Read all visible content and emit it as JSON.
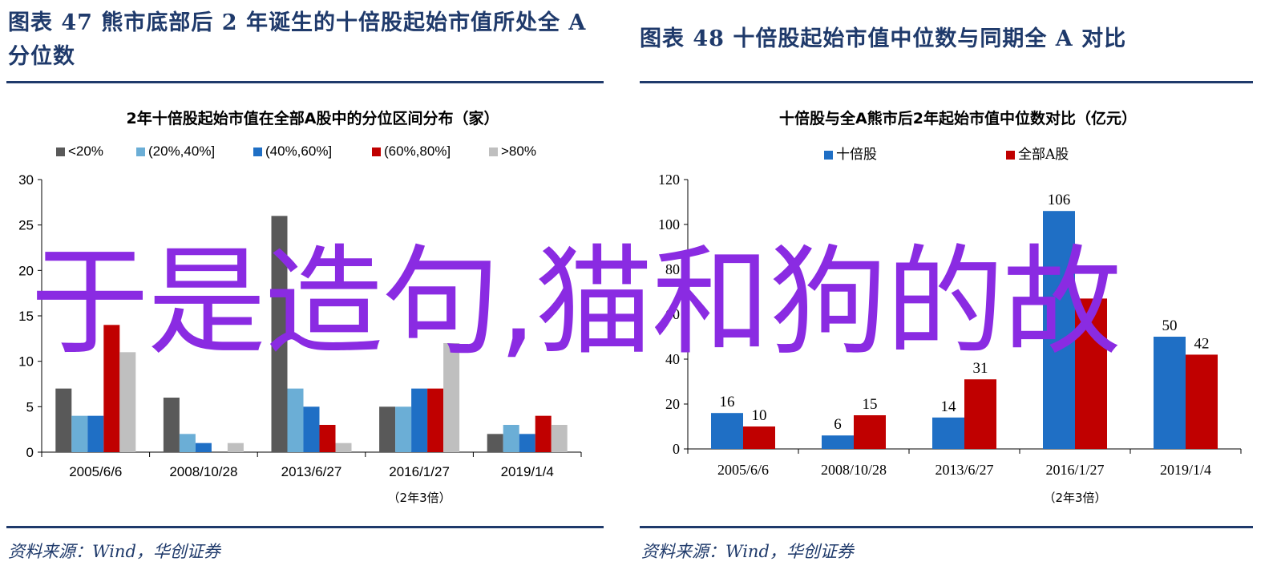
{
  "left": {
    "figure_title": "图表  47    熊市底部后 2 年诞生的十倍股起始市值所处全 A 分位数",
    "source": "资料来源：Wind，华创证券"
  },
  "right": {
    "figure_title": "图表  48    十倍股起始市值中位数与同期全 A 对比",
    "source": "资料来源：Wind，华创证券"
  },
  "overlay_text": "于是造句,猫和狗的故",
  "chart_data": [
    {
      "type": "bar",
      "title": "2年十倍股起始市值在全部A股中的分位区间分布（家）",
      "categories": [
        "2005/6/6",
        "2008/10/28",
        "2013/6/27",
        "2016/1/27",
        "2019/1/4"
      ],
      "series": [
        {
          "name": "<20%",
          "color": "#595959",
          "values": [
            7,
            6,
            26,
            5,
            2
          ]
        },
        {
          "name": "(20%,40%]",
          "color": "#6baed6",
          "values": [
            4,
            2,
            7,
            5,
            3
          ]
        },
        {
          "name": "(40%,60%]",
          "color": "#1f6fc5",
          "values": [
            4,
            1,
            5,
            7,
            2
          ]
        },
        {
          "name": "(60%,80%]",
          "color": "#c00000",
          "values": [
            14,
            0,
            3,
            7,
            4
          ]
        },
        {
          "name": ">80%",
          "color": "#bfbfbf",
          "values": [
            11,
            1,
            1,
            12,
            3
          ]
        }
      ],
      "ylim": [
        0,
        30
      ],
      "yticks": [
        0,
        5,
        10,
        15,
        20,
        25,
        30
      ],
      "x_note": "（2年3倍）",
      "legend": "top"
    },
    {
      "type": "bar",
      "title": "十倍股与全A熊市后2年起始市值中位数对比（亿元）",
      "categories": [
        "2005/6/6",
        "2008/10/28",
        "2013/6/27",
        "2016/1/27",
        "2019/1/4"
      ],
      "series": [
        {
          "name": "十倍股",
          "color": "#1f6fc5",
          "values": [
            16,
            6,
            14,
            106,
            50
          ]
        },
        {
          "name": "全部A股",
          "color": "#c00000",
          "values": [
            10,
            15,
            31,
            67,
            42
          ]
        }
      ],
      "data_labels": [
        [
          "16",
          "6",
          "14",
          "106",
          "50"
        ],
        [
          "10",
          "15",
          "31",
          "",
          "42"
        ]
      ],
      "ylim": [
        0,
        120
      ],
      "yticks": [
        0,
        20,
        40,
        60,
        80,
        100,
        120
      ],
      "x_note": "（2年3倍）",
      "legend": "top"
    }
  ]
}
